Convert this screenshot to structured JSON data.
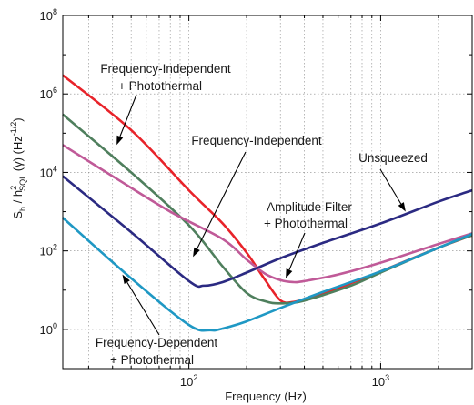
{
  "chart_data": {
    "type": "line",
    "title": "",
    "xlabel": "Frequency (Hz)",
    "ylabel_parts": [
      "S",
      "h",
      " / h",
      "2",
      "SQL",
      " (γ) (Hz",
      "-1/2",
      ")"
    ],
    "x_scale": "log",
    "y_scale": "log",
    "xlim": [
      22,
      3000
    ],
    "ylim": [
      0.1,
      100000000
    ],
    "grid": true,
    "x_ticks": [
      {
        "base": "10",
        "exp": "2",
        "value": 100
      },
      {
        "base": "10",
        "exp": "3",
        "value": 1000
      }
    ],
    "y_ticks": [
      {
        "base": "10",
        "exp": "0",
        "value": 1
      },
      {
        "base": "10",
        "exp": "2",
        "value": 100
      },
      {
        "base": "10",
        "exp": "4",
        "value": 10000
      },
      {
        "base": "10",
        "exp": "6",
        "value": 1000000
      },
      {
        "base": "10",
        "exp": "8",
        "value": 100000000
      }
    ],
    "series": [
      {
        "color": "#e8232a",
        "x": [
          22,
          50,
          100,
          150,
          200,
          250,
          300,
          350,
          450,
          700,
          1000,
          2000,
          3000
        ],
        "y": [
          3000000,
          120000,
          3500,
          500,
          90,
          18,
          5.5,
          5,
          7,
          15,
          30,
          120,
          250
        ]
      },
      {
        "color": "#4f7f5d",
        "x": [
          22,
          50,
          100,
          150,
          200,
          250,
          300,
          400,
          700,
          1000,
          2000,
          3000
        ],
        "y": [
          300000,
          10000,
          450,
          40,
          8.5,
          5.2,
          4.6,
          5.4,
          13,
          28,
          120,
          250
        ]
      },
      {
        "color": "#c05a98",
        "x": [
          22,
          40,
          80,
          150,
          200,
          250,
          300,
          350,
          400,
          600,
          1000,
          2000,
          3000
        ],
        "y": [
          50000,
          8000,
          1000,
          200,
          60,
          26,
          18,
          16,
          17,
          25,
          50,
          150,
          280
        ]
      },
      {
        "color": "#2b2a82",
        "x": [
          22,
          50,
          100,
          120,
          150,
          200,
          300,
          500,
          1000,
          2000,
          3000
        ],
        "y": [
          8000,
          300,
          17,
          13,
          16,
          28,
          65,
          160,
          500,
          1800,
          3500
        ]
      },
      {
        "color": "#1f98c4",
        "x": [
          22,
          50,
          100,
          130,
          150,
          200,
          300,
          500,
          1000,
          2000,
          3000
        ],
        "y": [
          700,
          20,
          1.3,
          0.95,
          1.05,
          1.6,
          3.5,
          9,
          30,
          120,
          270
        ]
      }
    ],
    "annotations": [
      {
        "lines": [
          "Frequency-Independent",
          "+ Photothermal"
        ],
        "arrow_to": {
          "x": 42,
          "y": 50000
        }
      },
      {
        "lines": [
          "Frequency-Independent"
        ],
        "arrow_to": {
          "x": 105,
          "y": 70
        }
      },
      {
        "lines": [
          "Unsqueezed"
        ],
        "arrow_to": {
          "x": 1350,
          "y": 1000
        }
      },
      {
        "lines": [
          "Amplitude Filter",
          "+ Photothermal"
        ],
        "arrow_to": {
          "x": 320,
          "y": 20
        }
      },
      {
        "lines": [
          "Frequency-Dependent",
          "+ Photothermal"
        ],
        "arrow_to": {
          "x": 45,
          "y": 25
        }
      }
    ]
  }
}
